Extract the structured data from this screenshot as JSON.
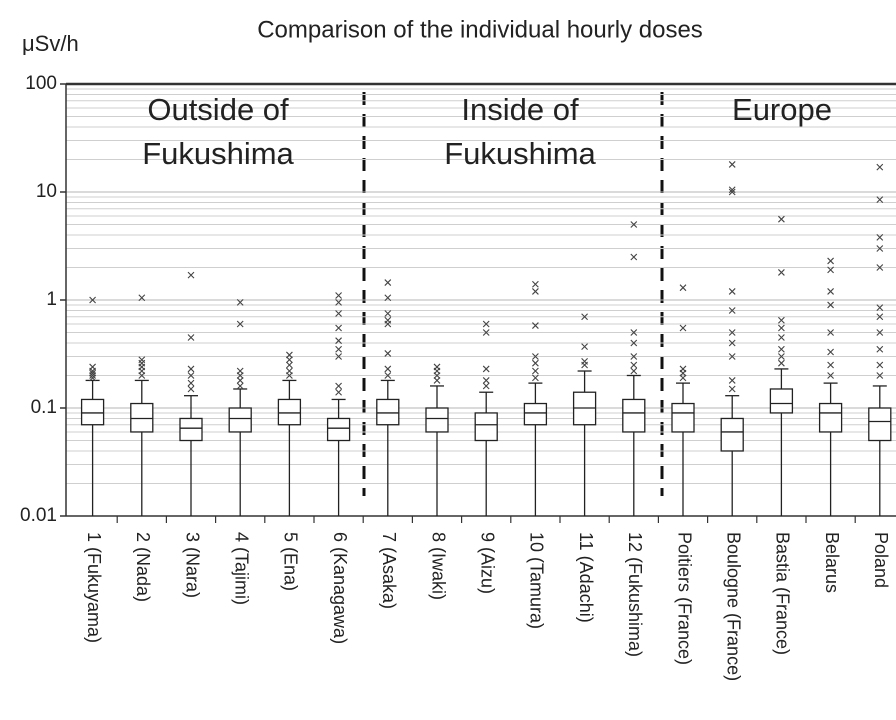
{
  "chart_data": {
    "type": "box",
    "title": "Comparison of the individual hourly doses",
    "y_label": "μSv/h",
    "y_log": true,
    "grid": true,
    "minor_grid": true,
    "ylim": [
      0.01,
      100
    ],
    "yticks": [
      0.01,
      0.1,
      1,
      10,
      100
    ],
    "annotations": [
      [
        "Outside of",
        "Fukushima"
      ],
      [
        "Inside of",
        "Fukushima"
      ],
      [
        "Europe"
      ]
    ],
    "categories": [
      "1 (Fukuyama)",
      "2 (Nada)",
      "3 (Nara)",
      "4 (Tajimi)",
      "5 (Ena)",
      "6 (Kanagawa)",
      "7 (Asaka)",
      "8 (Iwaki)",
      "9 (Aizu)",
      "10 (Tamura)",
      "11 (Adachi)",
      "12 (Fukushima)",
      "Poitiers (France)",
      "Boulogne (France)",
      "Bastia (France)",
      "Belarus",
      "Poland"
    ],
    "boxes": [
      {
        "whislo": 0.01,
        "q1": 0.07,
        "med": 0.09,
        "q3": 0.12,
        "whishi": 0.18,
        "fliers": [
          0.19,
          0.2,
          0.21,
          0.22,
          0.24,
          1.0
        ]
      },
      {
        "whislo": 0.01,
        "q1": 0.06,
        "med": 0.08,
        "q3": 0.11,
        "whishi": 0.18,
        "fliers": [
          0.2,
          0.22,
          0.24,
          0.26,
          0.28,
          1.05
        ]
      },
      {
        "whislo": 0.01,
        "q1": 0.05,
        "med": 0.065,
        "q3": 0.08,
        "whishi": 0.13,
        "fliers": [
          0.15,
          0.17,
          0.2,
          0.23,
          0.45,
          1.7
        ]
      },
      {
        "whislo": 0.01,
        "q1": 0.06,
        "med": 0.08,
        "q3": 0.1,
        "whishi": 0.15,
        "fliers": [
          0.16,
          0.18,
          0.2,
          0.22,
          0.6,
          0.95
        ]
      },
      {
        "whislo": 0.01,
        "q1": 0.07,
        "med": 0.09,
        "q3": 0.12,
        "whishi": 0.18,
        "fliers": [
          0.2,
          0.22,
          0.25,
          0.28,
          0.31
        ]
      },
      {
        "whislo": 0.01,
        "q1": 0.05,
        "med": 0.065,
        "q3": 0.08,
        "whishi": 0.12,
        "fliers": [
          0.14,
          0.16,
          0.3,
          0.35,
          0.42,
          0.55,
          0.75,
          0.95,
          1.1
        ]
      },
      {
        "whislo": 0.01,
        "q1": 0.07,
        "med": 0.09,
        "q3": 0.12,
        "whishi": 0.18,
        "fliers": [
          0.2,
          0.23,
          0.32,
          0.6,
          0.65,
          0.75,
          1.05,
          1.45
        ]
      },
      {
        "whislo": 0.01,
        "q1": 0.06,
        "med": 0.08,
        "q3": 0.1,
        "whishi": 0.16,
        "fliers": [
          0.18,
          0.2,
          0.22,
          0.24
        ]
      },
      {
        "whislo": 0.01,
        "q1": 0.05,
        "med": 0.07,
        "q3": 0.09,
        "whishi": 0.14,
        "fliers": [
          0.16,
          0.18,
          0.23,
          0.5,
          0.6
        ]
      },
      {
        "whislo": 0.01,
        "q1": 0.07,
        "med": 0.09,
        "q3": 0.11,
        "whishi": 0.17,
        "fliers": [
          0.19,
          0.22,
          0.26,
          0.3,
          0.58,
          1.2,
          1.4
        ]
      },
      {
        "whislo": 0.01,
        "q1": 0.07,
        "med": 0.1,
        "q3": 0.14,
        "whishi": 0.22,
        "fliers": [
          0.25,
          0.27,
          0.37,
          0.7
        ]
      },
      {
        "whislo": 0.01,
        "q1": 0.06,
        "med": 0.09,
        "q3": 0.12,
        "whishi": 0.2,
        "fliers": [
          0.22,
          0.25,
          0.3,
          0.4,
          0.5,
          2.5,
          5.0
        ]
      },
      {
        "whislo": 0.01,
        "q1": 0.06,
        "med": 0.09,
        "q3": 0.11,
        "whishi": 0.17,
        "fliers": [
          0.19,
          0.21,
          0.23,
          0.55,
          1.3
        ]
      },
      {
        "whislo": 0.01,
        "q1": 0.04,
        "med": 0.06,
        "q3": 0.08,
        "whishi": 0.13,
        "fliers": [
          0.15,
          0.18,
          0.3,
          0.4,
          0.5,
          0.8,
          1.2,
          10,
          10.5,
          18
        ]
      },
      {
        "whislo": 0.01,
        "q1": 0.09,
        "med": 0.11,
        "q3": 0.15,
        "whishi": 0.23,
        "fliers": [
          0.26,
          0.3,
          0.35,
          0.45,
          0.55,
          0.65,
          1.8,
          5.6
        ]
      },
      {
        "whislo": 0.01,
        "q1": 0.06,
        "med": 0.09,
        "q3": 0.11,
        "whishi": 0.17,
        "fliers": [
          0.2,
          0.25,
          0.33,
          0.5,
          0.9,
          1.2,
          1.9,
          2.3
        ]
      },
      {
        "whislo": 0.01,
        "q1": 0.05,
        "med": 0.075,
        "q3": 0.1,
        "whishi": 0.16,
        "fliers": [
          0.2,
          0.25,
          0.35,
          0.5,
          0.7,
          0.85,
          2,
          3,
          3.8,
          8.5,
          17
        ]
      }
    ]
  }
}
